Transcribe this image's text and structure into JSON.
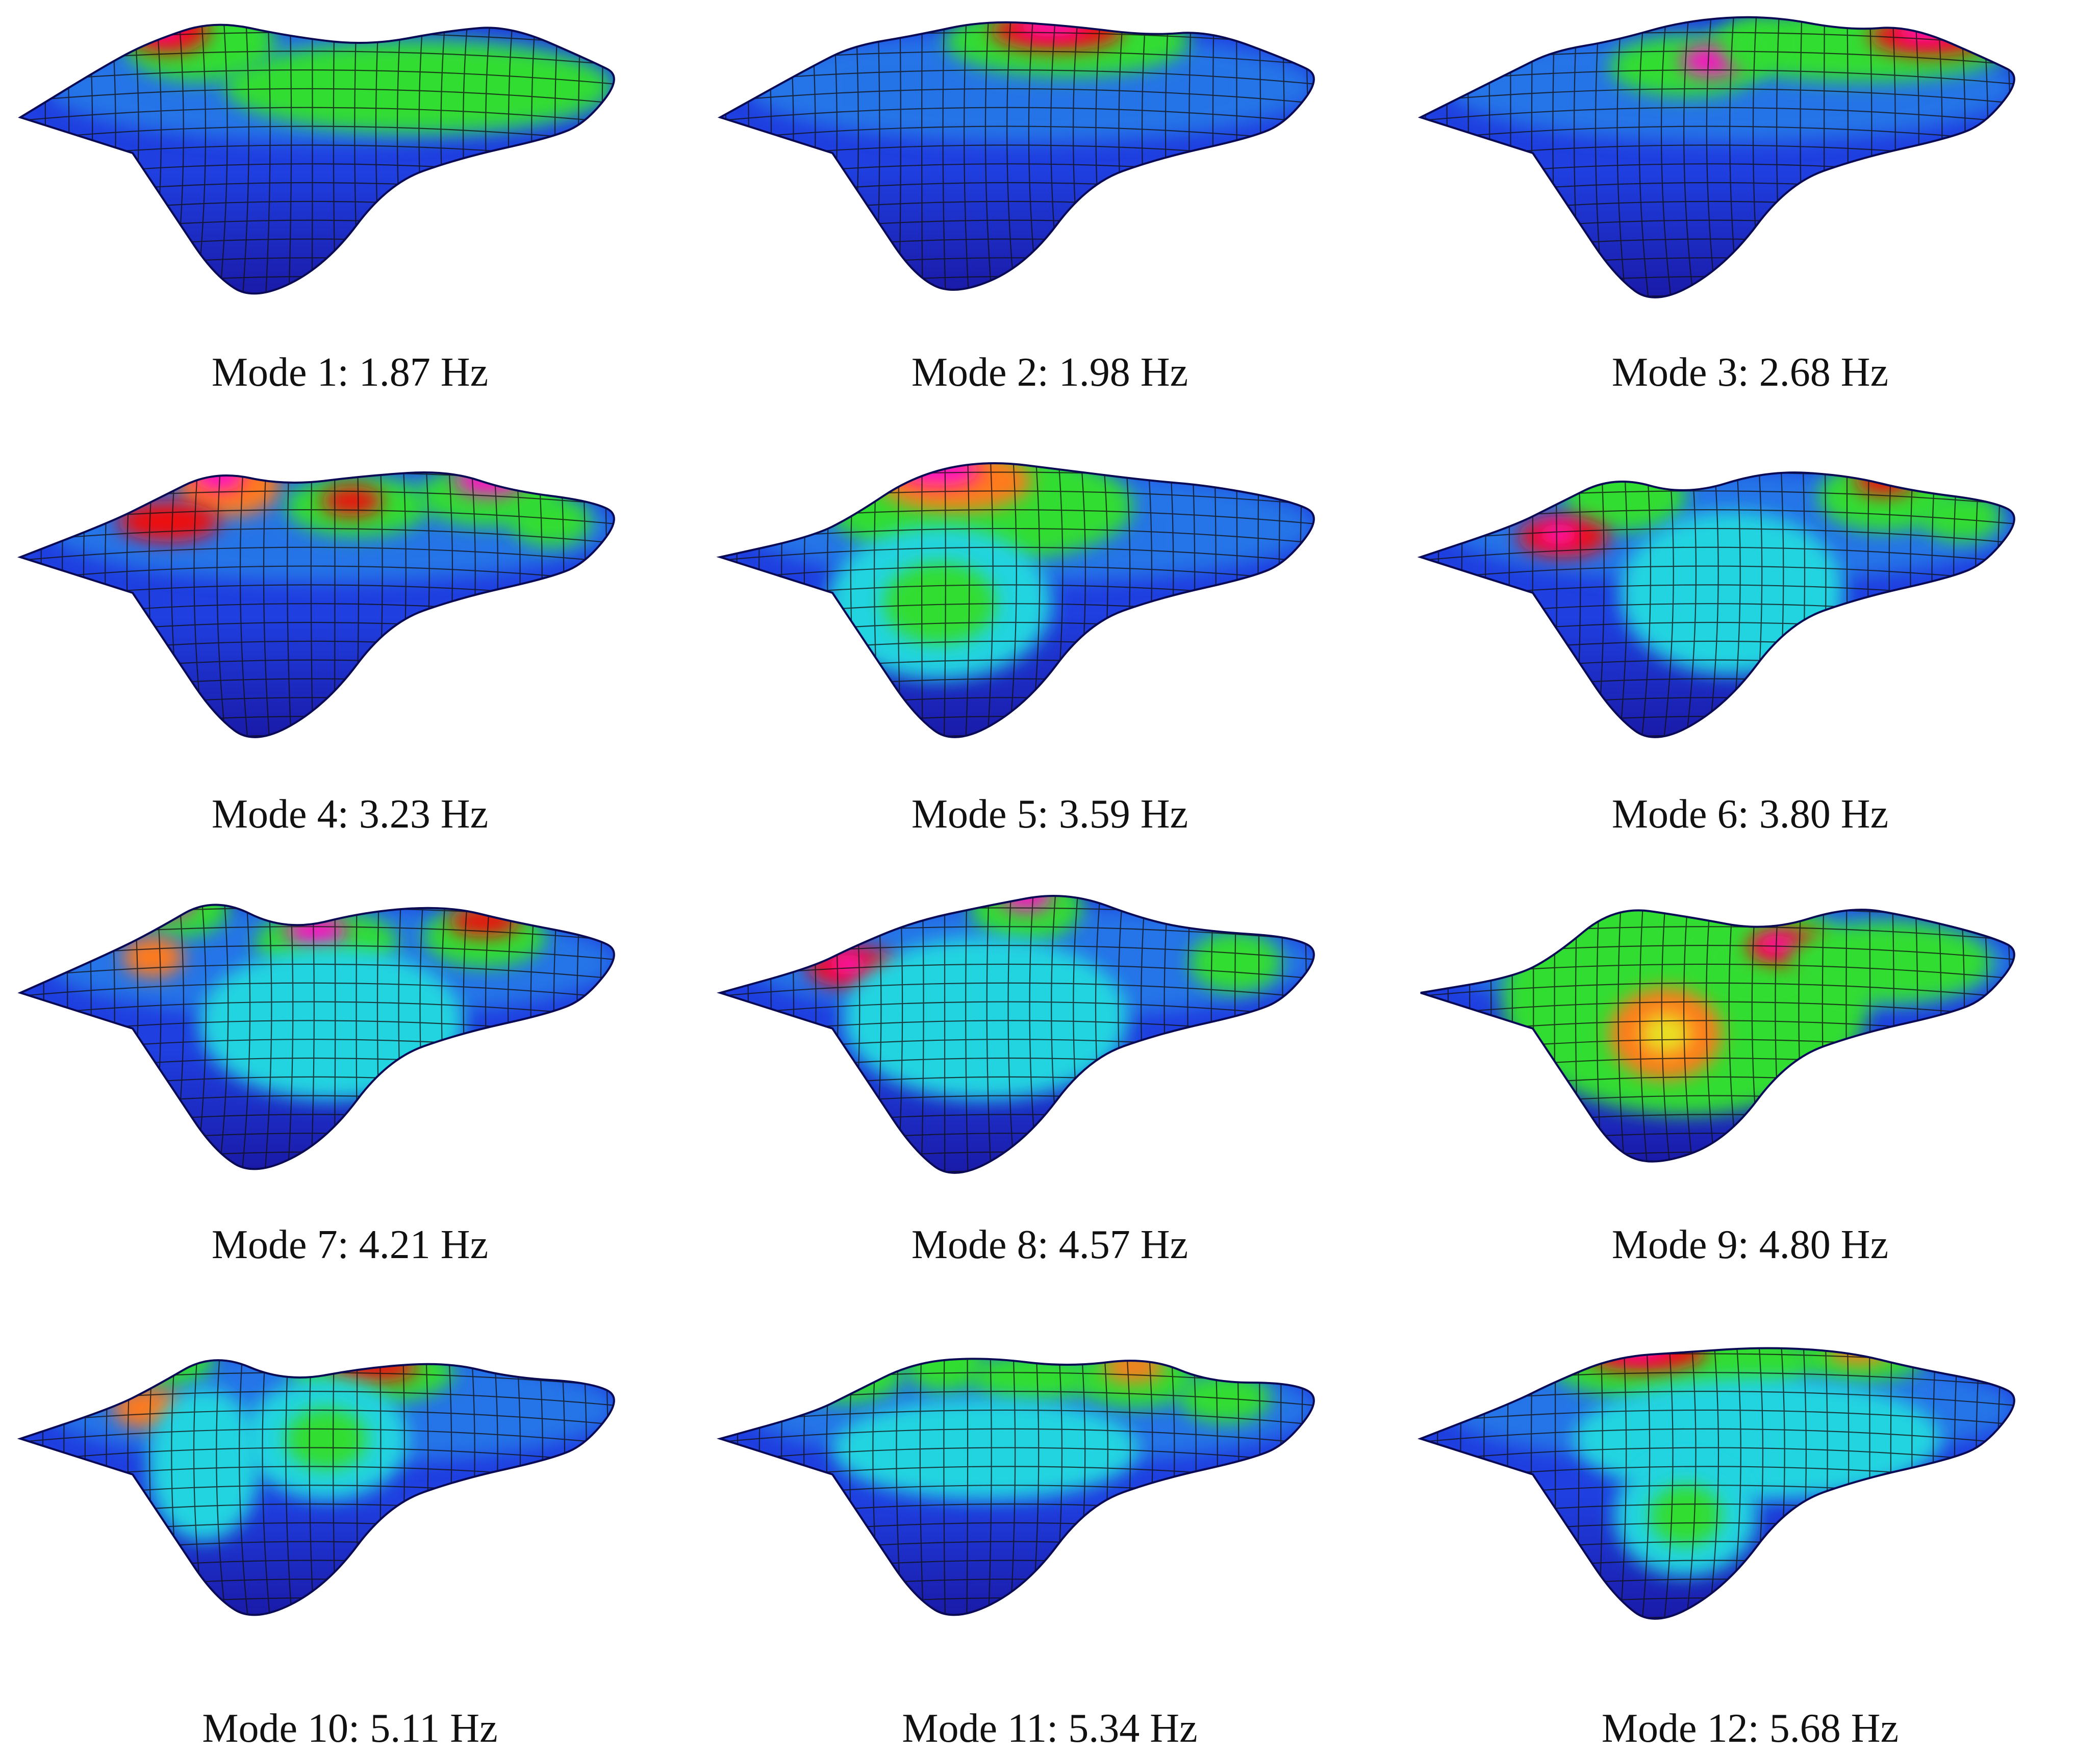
{
  "colors": {
    "deep_blue": "#1a1aa8",
    "blue": "#1f3fe0",
    "light_blue": "#2aa0ee",
    "cyan": "#22d4e0",
    "green": "#33dd33",
    "yellow": "#e8e020",
    "orange": "#ff7a1a",
    "red": "#ee1010",
    "magenta": "#ff10c8",
    "mesh_line": "#111111"
  },
  "legend_scale": [
    "deep_blue",
    "blue",
    "light_blue",
    "cyan",
    "green",
    "yellow",
    "orange",
    "red",
    "magenta"
  ],
  "modes": [
    {
      "caption": "Mode 1: 1.87 Hz"
    },
    {
      "caption": "Mode 2: 1.98 Hz"
    },
    {
      "caption": "Mode 3: 2.68 Hz"
    },
    {
      "caption": "Mode 4: 3.23 Hz"
    },
    {
      "caption": "Mode 5: 3.59 Hz"
    },
    {
      "caption": "Mode 6: 3.80 Hz"
    },
    {
      "caption": "Mode 7: 4.21 Hz"
    },
    {
      "caption": "Mode 8: 4.57 Hz"
    },
    {
      "caption": "Mode 9: 4.80 Hz"
    },
    {
      "caption": "Mode 10: 5.11 Hz"
    },
    {
      "caption": "Mode 11: 5.34 Hz"
    },
    {
      "caption": "Mode 12: 5.68 Hz"
    }
  ]
}
